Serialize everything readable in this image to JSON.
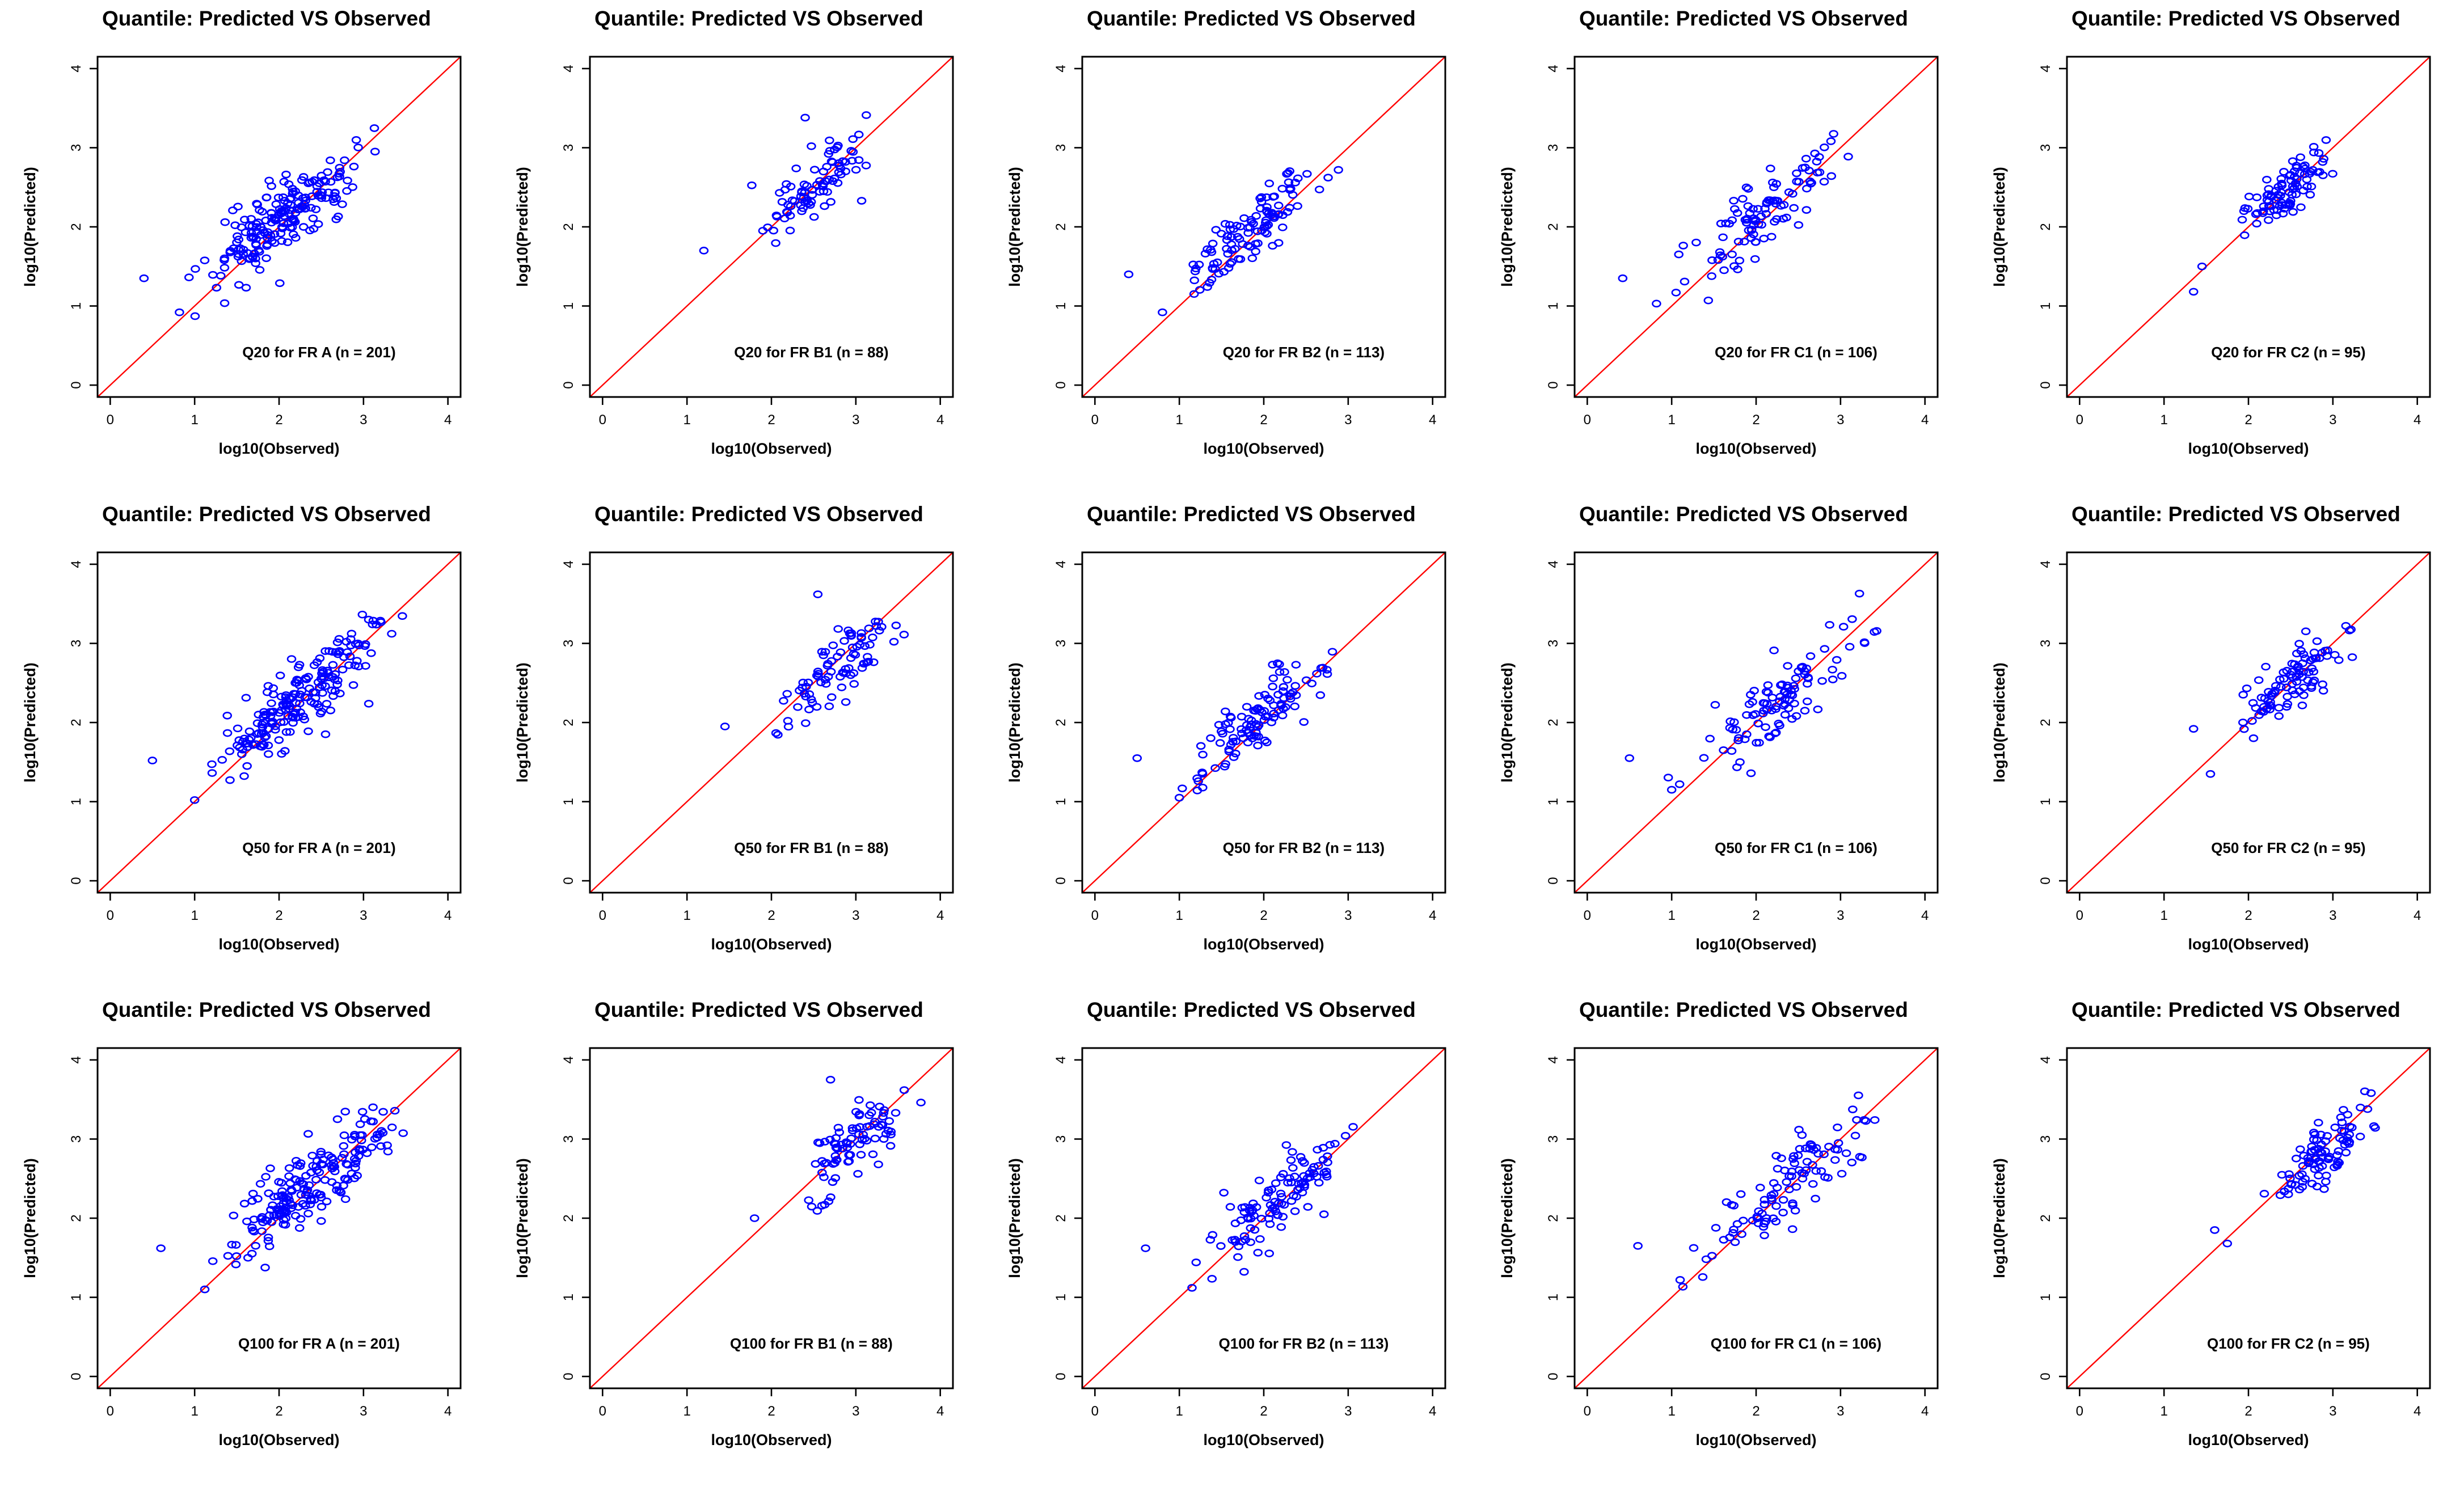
{
  "chart_data": [
    {
      "type": "scatter",
      "title": "Quantile: Predicted VS Observed",
      "xlabel": "log10(Observed)",
      "ylabel": "log10(Predicted)",
      "annotation": "Q20 for FR A (n = 201)",
      "xlim": [
        -0.15,
        4.15
      ],
      "ylim": [
        -0.15,
        4.15
      ],
      "xticks": [
        0,
        1,
        2,
        3,
        4
      ],
      "yticks": [
        0,
        1,
        2,
        3,
        4
      ],
      "reference_line": "y = x",
      "n": 201,
      "seed": 11,
      "spread": 0.34,
      "x_range": [
        0.4,
        3.4
      ],
      "outliers": [
        [
          0.4,
          1.35
        ],
        [
          0.82,
          0.92
        ]
      ]
    },
    {
      "type": "scatter",
      "title": "Quantile: Predicted VS Observed",
      "xlabel": "log10(Observed)",
      "ylabel": "log10(Predicted)",
      "annotation": "Q20 for FR B1 (n = 88)",
      "xlim": [
        -0.15,
        4.15
      ],
      "ylim": [
        -0.15,
        4.15
      ],
      "xticks": [
        0,
        1,
        2,
        3,
        4
      ],
      "yticks": [
        0,
        1,
        2,
        3,
        4
      ],
      "reference_line": "y = x",
      "n": 88,
      "seed": 12,
      "spread": 0.3,
      "x_range": [
        1.2,
        3.5
      ],
      "outliers": [
        [
          1.2,
          1.7
        ],
        [
          2.4,
          3.38
        ]
      ]
    },
    {
      "type": "scatter",
      "title": "Quantile: Predicted VS Observed",
      "xlabel": "log10(Observed)",
      "ylabel": "log10(Predicted)",
      "annotation": "Q20 for FR B2 (n = 113)",
      "xlim": [
        -0.15,
        4.15
      ],
      "ylim": [
        -0.15,
        4.15
      ],
      "xticks": [
        0,
        1,
        2,
        3,
        4
      ],
      "yticks": [
        0,
        1,
        2,
        3,
        4
      ],
      "reference_line": "y = x",
      "n": 113,
      "seed": 13,
      "spread": 0.28,
      "x_range": [
        0.4,
        3.0
      ],
      "outliers": [
        [
          0.4,
          1.4
        ],
        [
          0.8,
          0.92
        ]
      ]
    },
    {
      "type": "scatter",
      "title": "Quantile: Predicted VS Observed",
      "xlabel": "log10(Observed)",
      "ylabel": "log10(Predicted)",
      "annotation": "Q20 for FR C1 (n = 106)",
      "xlim": [
        -0.15,
        4.15
      ],
      "ylim": [
        -0.15,
        4.15
      ],
      "xticks": [
        0,
        1,
        2,
        3,
        4
      ],
      "yticks": [
        0,
        1,
        2,
        3,
        4
      ],
      "reference_line": "y = x",
      "n": 106,
      "seed": 14,
      "spread": 0.34,
      "x_range": [
        0.4,
        3.35
      ],
      "outliers": [
        [
          0.42,
          1.35
        ],
        [
          0.82,
          1.03
        ]
      ]
    },
    {
      "type": "scatter",
      "title": "Quantile: Predicted VS Observed",
      "xlabel": "log10(Observed)",
      "ylabel": "log10(Predicted)",
      "annotation": "Q20 for FR C2 (n = 95)",
      "xlim": [
        -0.15,
        4.15
      ],
      "ylim": [
        -0.15,
        4.15
      ],
      "xticks": [
        0,
        1,
        2,
        3,
        4
      ],
      "yticks": [
        0,
        1,
        2,
        3,
        4
      ],
      "reference_line": "y = x",
      "n": 95,
      "seed": 15,
      "spread": 0.24,
      "x_range": [
        1.3,
        3.2
      ],
      "outliers": [
        [
          1.35,
          1.18
        ],
        [
          1.45,
          1.5
        ]
      ]
    },
    {
      "type": "scatter",
      "title": "Quantile: Predicted VS Observed",
      "xlabel": "log10(Observed)",
      "ylabel": "log10(Predicted)",
      "annotation": "Q50 for FR A (n = 201)",
      "xlim": [
        -0.15,
        4.15
      ],
      "ylim": [
        -0.15,
        4.15
      ],
      "xticks": [
        0,
        1,
        2,
        3,
        4
      ],
      "yticks": [
        0,
        1,
        2,
        3,
        4
      ],
      "reference_line": "y = x",
      "n": 201,
      "seed": 21,
      "spread": 0.34,
      "x_range": [
        0.5,
        3.6
      ],
      "outliers": [
        [
          0.5,
          1.52
        ],
        [
          1.0,
          1.02
        ]
      ]
    },
    {
      "type": "scatter",
      "title": "Quantile: Predicted VS Observed",
      "xlabel": "log10(Observed)",
      "ylabel": "log10(Predicted)",
      "annotation": "Q50 for FR B1 (n = 88)",
      "xlim": [
        -0.15,
        4.15
      ],
      "ylim": [
        -0.15,
        4.15
      ],
      "xticks": [
        0,
        1,
        2,
        3,
        4
      ],
      "yticks": [
        0,
        1,
        2,
        3,
        4
      ],
      "reference_line": "y = x",
      "n": 88,
      "seed": 22,
      "spread": 0.3,
      "x_range": [
        1.4,
        3.7
      ],
      "outliers": [
        [
          1.45,
          1.95
        ],
        [
          2.55,
          3.62
        ]
      ]
    },
    {
      "type": "scatter",
      "title": "Quantile: Predicted VS Observed",
      "xlabel": "log10(Observed)",
      "ylabel": "log10(Predicted)",
      "annotation": "Q50 for FR B2 (n = 113)",
      "xlim": [
        -0.15,
        4.15
      ],
      "ylim": [
        -0.15,
        4.15
      ],
      "xticks": [
        0,
        1,
        2,
        3,
        4
      ],
      "yticks": [
        0,
        1,
        2,
        3,
        4
      ],
      "reference_line": "y = x",
      "n": 113,
      "seed": 23,
      "spread": 0.3,
      "x_range": [
        0.5,
        3.1
      ],
      "outliers": [
        [
          0.5,
          1.55
        ],
        [
          1.0,
          1.05
        ]
      ]
    },
    {
      "type": "scatter",
      "title": "Quantile: Predicted VS Observed",
      "xlabel": "log10(Observed)",
      "ylabel": "log10(Predicted)",
      "annotation": "Q50 for FR C1 (n = 106)",
      "xlim": [
        -0.15,
        4.15
      ],
      "ylim": [
        -0.15,
        4.15
      ],
      "xticks": [
        0,
        1,
        2,
        3,
        4
      ],
      "yticks": [
        0,
        1,
        2,
        3,
        4
      ],
      "reference_line": "y = x",
      "n": 106,
      "seed": 24,
      "spread": 0.36,
      "x_range": [
        0.5,
        3.55
      ],
      "outliers": [
        [
          0.5,
          1.55
        ],
        [
          1.0,
          1.15
        ]
      ]
    },
    {
      "type": "scatter",
      "title": "Quantile: Predicted VS Observed",
      "xlabel": "log10(Observed)",
      "ylabel": "log10(Predicted)",
      "annotation": "Q50 for FR C2 (n = 95)",
      "xlim": [
        -0.15,
        4.15
      ],
      "ylim": [
        -0.15,
        4.15
      ],
      "xticks": [
        0,
        1,
        2,
        3,
        4
      ],
      "yticks": [
        0,
        1,
        2,
        3,
        4
      ],
      "reference_line": "y = x",
      "n": 95,
      "seed": 25,
      "spread": 0.26,
      "x_range": [
        1.3,
        3.5
      ],
      "outliers": [
        [
          1.55,
          1.35
        ],
        [
          1.35,
          1.92
        ]
      ]
    },
    {
      "type": "scatter",
      "title": "Quantile: Predicted VS Observed",
      "xlabel": "log10(Observed)",
      "ylabel": "log10(Predicted)",
      "annotation": "Q100 for FR A (n = 201)",
      "xlim": [
        -0.15,
        4.15
      ],
      "ylim": [
        -0.15,
        4.15
      ],
      "xticks": [
        0,
        1,
        2,
        3,
        4
      ],
      "yticks": [
        0,
        1,
        2,
        3,
        4
      ],
      "reference_line": "y = x",
      "n": 201,
      "seed": 31,
      "spread": 0.34,
      "x_range": [
        0.6,
        3.85
      ],
      "outliers": [
        [
          0.6,
          1.62
        ],
        [
          1.12,
          1.1
        ]
      ]
    },
    {
      "type": "scatter",
      "title": "Quantile: Predicted VS Observed",
      "xlabel": "log10(Observed)",
      "ylabel": "log10(Predicted)",
      "annotation": "Q100 for FR B1 (n = 88)",
      "xlim": [
        -0.15,
        4.15
      ],
      "ylim": [
        -0.15,
        4.15
      ],
      "xticks": [
        0,
        1,
        2,
        3,
        4
      ],
      "yticks": [
        0,
        1,
        2,
        3,
        4
      ],
      "reference_line": "y = x",
      "n": 88,
      "seed": 32,
      "spread": 0.3,
      "x_range": [
        1.7,
        3.9
      ],
      "outliers": [
        [
          1.8,
          2.0
        ],
        [
          2.7,
          3.75
        ]
      ]
    },
    {
      "type": "scatter",
      "title": "Quantile: Predicted VS Observed",
      "xlabel": "log10(Observed)",
      "ylabel": "log10(Predicted)",
      "annotation": "Q100 for FR B2 (n = 113)",
      "xlim": [
        -0.15,
        4.15
      ],
      "ylim": [
        -0.15,
        4.15
      ],
      "xticks": [
        0,
        1,
        2,
        3,
        4
      ],
      "yticks": [
        0,
        1,
        2,
        3,
        4
      ],
      "reference_line": "y = x",
      "n": 113,
      "seed": 33,
      "spread": 0.3,
      "x_range": [
        0.6,
        3.2
      ],
      "outliers": [
        [
          0.6,
          1.62
        ],
        [
          1.15,
          1.12
        ]
      ]
    },
    {
      "type": "scatter",
      "title": "Quantile: Predicted VS Observed",
      "xlabel": "log10(Observed)",
      "ylabel": "log10(Predicted)",
      "annotation": "Q100 for FR C1 (n = 106)",
      "xlim": [
        -0.15,
        4.15
      ],
      "ylim": [
        -0.15,
        4.15
      ],
      "xticks": [
        0,
        1,
        2,
        3,
        4
      ],
      "yticks": [
        0,
        1,
        2,
        3,
        4
      ],
      "reference_line": "y = x",
      "n": 106,
      "seed": 34,
      "spread": 0.36,
      "x_range": [
        0.6,
        3.85
      ],
      "outliers": [
        [
          0.6,
          1.65
        ],
        [
          1.1,
          1.22
        ]
      ]
    },
    {
      "type": "scatter",
      "title": "Quantile: Predicted VS Observed",
      "xlabel": "log10(Observed)",
      "ylabel": "log10(Predicted)",
      "annotation": "Q100 for FR C2 (n = 95)",
      "xlim": [
        -0.15,
        4.15
      ],
      "ylim": [
        -0.15,
        4.15
      ],
      "xticks": [
        0,
        1,
        2,
        3,
        4
      ],
      "yticks": [
        0,
        1,
        2,
        3,
        4
      ],
      "reference_line": "y = x",
      "n": 95,
      "seed": 35,
      "spread": 0.26,
      "x_range": [
        1.6,
        3.75
      ],
      "outliers": [
        [
          1.6,
          1.85
        ],
        [
          1.75,
          1.68
        ]
      ]
    }
  ],
  "colors": {
    "points": "#0000ff",
    "reference_line": "#ff0000",
    "axes": "#000000"
  }
}
